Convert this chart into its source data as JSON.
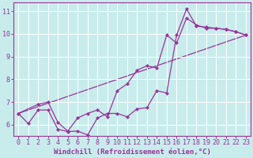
{
  "xlabel": "Windchill (Refroidissement éolien,°C)",
  "bg_color": "#c8ecec",
  "line_color": "#993399",
  "marker": "D",
  "markersize": 2.2,
  "linewidth": 0.9,
  "xlim": [
    -0.5,
    23.5
  ],
  "ylim": [
    5.5,
    11.4
  ],
  "yticks": [
    6,
    7,
    8,
    9,
    10,
    11
  ],
  "xticks": [
    0,
    1,
    2,
    3,
    4,
    5,
    6,
    7,
    8,
    9,
    10,
    11,
    12,
    13,
    14,
    15,
    16,
    17,
    18,
    19,
    20,
    21,
    22,
    23
  ],
  "series1_x": [
    0,
    1,
    2,
    3,
    4,
    5,
    6,
    7,
    8,
    9,
    10,
    11,
    12,
    13,
    14,
    15,
    16,
    17,
    18,
    19,
    20,
    21,
    22,
    23
  ],
  "series1_y": [
    6.5,
    6.05,
    6.65,
    6.65,
    5.8,
    5.7,
    5.72,
    5.55,
    6.3,
    6.5,
    6.5,
    6.35,
    6.7,
    6.75,
    7.5,
    7.4,
    9.95,
    11.1,
    10.35,
    10.3,
    10.25,
    10.2,
    10.1,
    9.95
  ],
  "series2_x": [
    0,
    2,
    3,
    4,
    5,
    6,
    7,
    8,
    9,
    10,
    11,
    12,
    13,
    14,
    15,
    16,
    17,
    18,
    19,
    20,
    21,
    22,
    23
  ],
  "series2_y": [
    6.5,
    6.9,
    7.0,
    6.1,
    5.72,
    6.3,
    6.5,
    6.65,
    6.35,
    7.5,
    7.8,
    8.4,
    8.6,
    8.5,
    9.95,
    9.6,
    10.7,
    10.4,
    10.25,
    10.25,
    10.2,
    10.1,
    9.95
  ],
  "series3_x": [
    0,
    23
  ],
  "series3_y": [
    6.5,
    9.95
  ],
  "grid_color": "#aadddd",
  "spine_color": "#993399",
  "tick_color": "#993399",
  "label_color": "#993399",
  "xlabel_fontsize": 6.5,
  "tick_fontsize": 6.0
}
